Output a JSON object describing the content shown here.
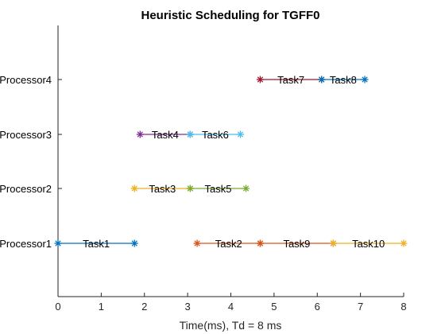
{
  "chart_data": {
    "type": "gantt",
    "title": "Heuristic Scheduling for TGFF0",
    "xlabel": "Time(ms), Td = 8 ms",
    "xlim": [
      0,
      8
    ],
    "xticks": [
      "0",
      "1",
      "2",
      "3",
      "4",
      "5",
      "6",
      "7",
      "8"
    ],
    "processors": [
      "Processor1",
      "Processor2",
      "Processor3",
      "Processor4"
    ],
    "tasks": [
      {
        "label": "Task1",
        "processor": 1,
        "start": 0.0,
        "end": 1.77,
        "color": "#0072bd"
      },
      {
        "label": "Task2",
        "processor": 1,
        "start": 3.22,
        "end": 4.68,
        "color": "#d95319"
      },
      {
        "label": "Task9",
        "processor": 1,
        "start": 4.68,
        "end": 6.37,
        "color": "#d95319"
      },
      {
        "label": "Task10",
        "processor": 1,
        "start": 6.37,
        "end": 8.0,
        "color": "#edb120"
      },
      {
        "label": "Task3",
        "processor": 2,
        "start": 1.77,
        "end": 3.06,
        "color": "#edb120"
      },
      {
        "label": "Task5",
        "processor": 2,
        "start": 3.06,
        "end": 4.35,
        "color": "#77ac30"
      },
      {
        "label": "Task4",
        "processor": 3,
        "start": 1.9,
        "end": 3.06,
        "color": "#7e2f8e"
      },
      {
        "label": "Task6",
        "processor": 3,
        "start": 3.06,
        "end": 4.22,
        "color": "#4dbeee"
      },
      {
        "label": "Task7",
        "processor": 4,
        "start": 4.68,
        "end": 6.1,
        "color": "#a2142f"
      },
      {
        "label": "Task8",
        "processor": 4,
        "start": 6.1,
        "end": 7.1,
        "color": "#0072bd"
      }
    ]
  }
}
